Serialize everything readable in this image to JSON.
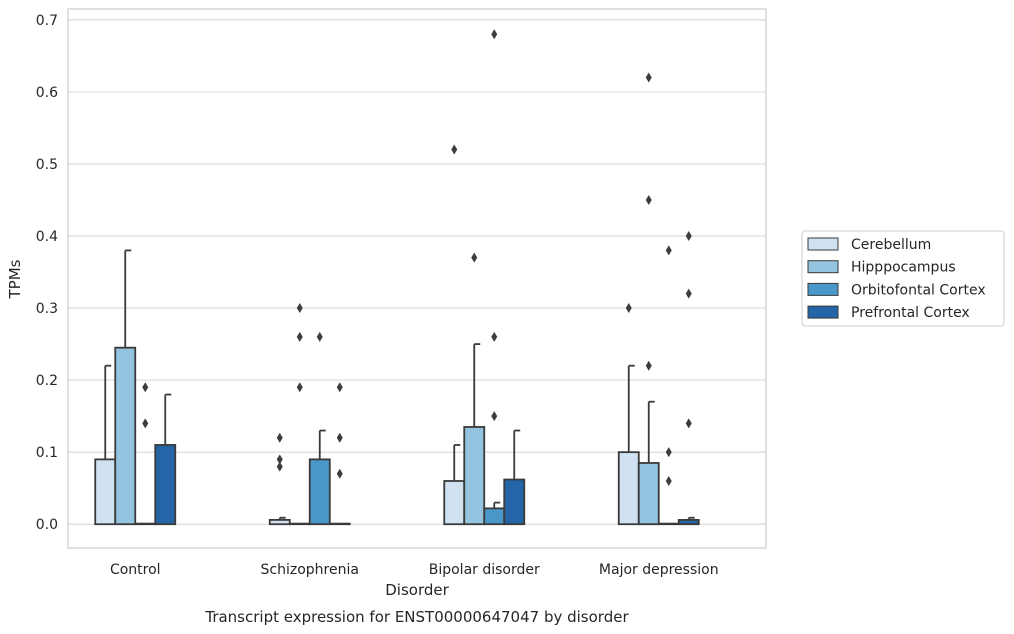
{
  "chart_data": {
    "type": "bar",
    "title": "",
    "caption": "Transcript expression for ENST00000647047 by disorder",
    "xlabel": "Disorder",
    "ylabel": "TPMs",
    "ylim": [
      -0.033,
      0.715
    ],
    "yticks": [
      "0.0",
      "0.1",
      "0.2",
      "0.3",
      "0.4",
      "0.5",
      "0.6",
      "0.7"
    ],
    "categories": [
      "Control",
      "Schizophrenia",
      "Bipolar disorder",
      "Major depression"
    ],
    "grid": "horizontal",
    "legend_placement": "right",
    "series": [
      {
        "name": "Cerebellum",
        "color": "#d0e1f2",
        "values": [
          0.09,
          0.006,
          0.06,
          0.1
        ],
        "error_upper": [
          0.22,
          0.009,
          0.11,
          0.22
        ],
        "outliers": [
          [],
          [
            0.12,
            0.09,
            0.08
          ],
          [
            0.52
          ],
          [
            0.3
          ]
        ]
      },
      {
        "name": "Hipppocampus",
        "color": "#94c4df",
        "values": [
          0.245,
          0.0,
          0.135,
          0.085
        ],
        "error_upper": [
          0.38,
          null,
          0.25,
          0.17
        ],
        "outliers": [
          [],
          [
            0.3,
            0.26,
            0.19
          ],
          [
            0.37
          ],
          [
            0.62,
            0.45,
            0.22
          ]
        ]
      },
      {
        "name": "Orbitofontal Cortex",
        "color": "#4a98c9",
        "values": [
          0.0,
          0.09,
          0.022,
          0.0
        ],
        "error_upper": [
          null,
          0.13,
          0.03,
          null
        ],
        "outliers": [
          [
            0.19,
            0.14
          ],
          [
            0.26
          ],
          [
            0.68,
            0.26,
            0.15
          ],
          [
            0.38,
            0.1,
            0.06
          ]
        ]
      },
      {
        "name": "Prefrontal Cortex",
        "color": "#2465a8",
        "values": [
          0.11,
          0.0,
          0.062,
          0.006
        ],
        "error_upper": [
          0.18,
          null,
          0.13,
          0.009
        ],
        "outliers": [
          [],
          [
            0.19,
            0.12,
            0.07
          ],
          [],
          [
            0.4,
            0.32,
            0.14
          ]
        ]
      }
    ]
  }
}
